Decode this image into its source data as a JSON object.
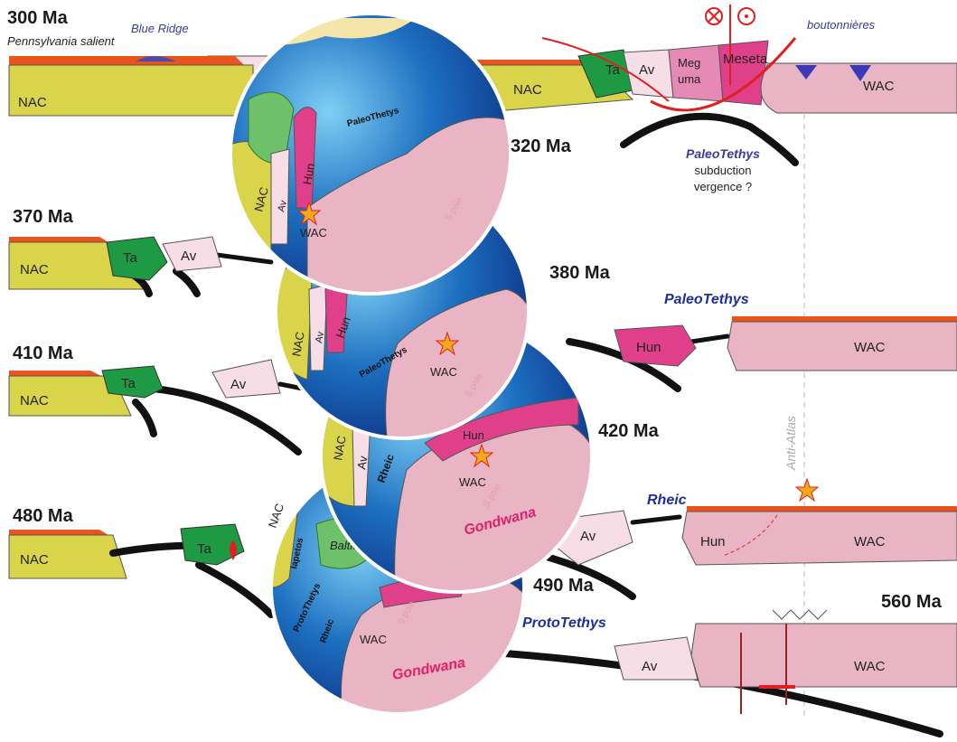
{
  "top_section": {
    "age": "300 Ma",
    "left_notes": [
      "Pennsylvania salient",
      "Blue Ridge"
    ],
    "left_blocks": [
      "NAC"
    ],
    "right_blocks": [
      "NAC",
      "Ta",
      "Av",
      "Meg",
      "uma",
      "Meseta",
      "WAC"
    ],
    "right_note": "boutonnières",
    "subduction": [
      "PaleoTethys",
      "subduction",
      "vergence ?"
    ]
  },
  "left_sections": [
    {
      "age": "370 Ma",
      "blocks": [
        "NAC",
        "Ta",
        "Av"
      ]
    },
    {
      "age": "410 Ma",
      "blocks": [
        "NAC",
        "Ta",
        "Av"
      ]
    },
    {
      "age": "480 Ma",
      "blocks": [
        "NAC",
        "Ta"
      ]
    }
  ],
  "right_sections": [
    {
      "ocean": "PaleoTethys",
      "blocks": [
        "Hun",
        "WAC"
      ]
    },
    {
      "ocean": "Rheic",
      "blocks": [
        "Av",
        "Hun",
        "WAC"
      ]
    },
    {
      "ocean": "ProtoTethys",
      "age": "560 Ma",
      "blocks": [
        "Av",
        "WAC"
      ]
    }
  ],
  "anti_atlas": "Anti-Atlas",
  "globes": [
    {
      "age": "320 Ma",
      "labels": [
        "PaleoThetys",
        "NAC",
        "Av",
        "Hun",
        "WAC",
        "S pole"
      ]
    },
    {
      "age": "380 Ma",
      "labels": [
        "NAC",
        "Av",
        "Hun",
        "PaleoThetys",
        "WAC",
        "S pole"
      ]
    },
    {
      "age": "420 Ma",
      "labels": [
        "NAC",
        "Av",
        "Rheic",
        "Hun",
        "WAC",
        "S pole",
        "Gondwana"
      ]
    },
    {
      "age": "490 Ma",
      "labels": [
        "NAC",
        "Iapetos",
        "Baltica",
        "ProtoThetys",
        "Rheic",
        "WAC",
        "S pole",
        "Gondwana"
      ]
    }
  ]
}
